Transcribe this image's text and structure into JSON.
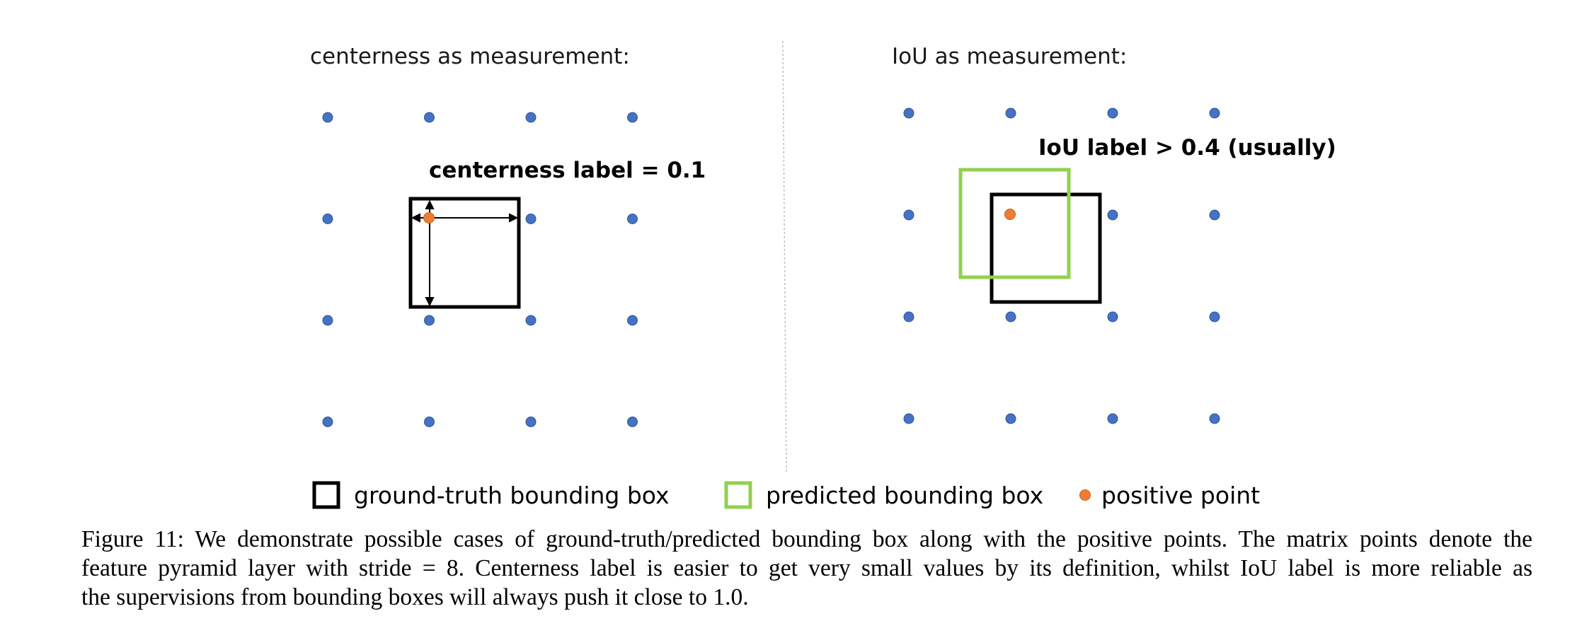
{
  "left_panel": {
    "title": "centerness as measurement:",
    "box_label": "centerness label = 0.1"
  },
  "right_panel": {
    "title": "IoU as measurement:",
    "box_label": "IoU label > 0.4 (usually)"
  },
  "legend": {
    "gt": "ground-truth bounding box",
    "pred": "predicted bounding box",
    "pos": "positive point"
  },
  "caption": {
    "lines": [
      "Figure 11: We demonstrate possible cases of ground-truth/predicted bounding box along with the positive points. The matrix points denote the",
      "feature pyramid layer with stride = 8. Centerness label is easier to get very small values by its definition, whilst IoU label is more reliable as",
      "the supervisions from bounding boxes will always push it close to 1.0."
    ]
  },
  "colors": {
    "grid_point": "#4472C4",
    "positive_point": "#ED7D31",
    "gt_box": "#000000",
    "pred_box": "#92D050",
    "divider": "#bfbfbf"
  }
}
